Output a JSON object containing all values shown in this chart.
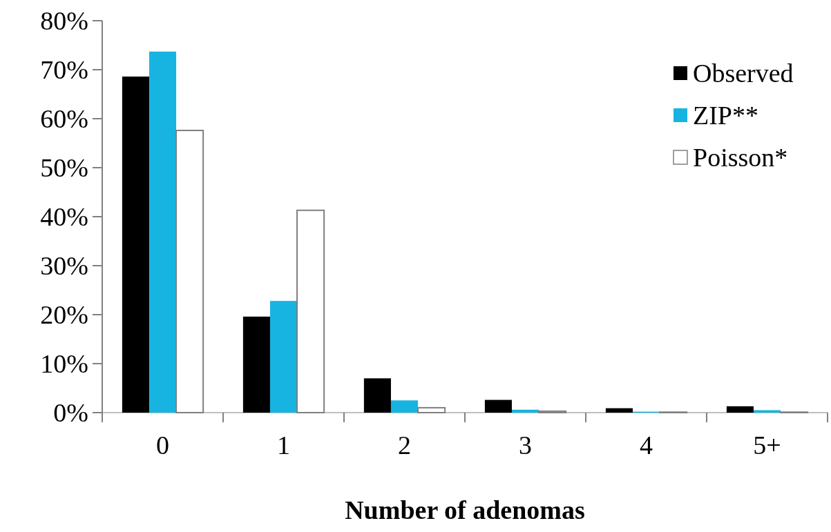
{
  "chart_data": {
    "type": "bar",
    "xlabel": "Number of adenomas",
    "categories": [
      "0",
      "1",
      "2",
      "3",
      "4",
      "5+"
    ],
    "series": [
      {
        "name": "Observed",
        "color": "#000000",
        "values": [
          68.6,
          19.6,
          7.0,
          2.6,
          0.9,
          1.3
        ]
      },
      {
        "name": "ZIP**",
        "color": "#17b4e2",
        "values": [
          73.7,
          22.8,
          2.5,
          0.6,
          0.2,
          0.5
        ]
      },
      {
        "name": "Poisson*",
        "color": "#ffffff",
        "values": [
          57.6,
          41.3,
          1.0,
          0.3,
          0.1,
          0.1
        ]
      }
    ],
    "ylim": [
      0,
      80
    ],
    "yticks": [
      {
        "value": 0,
        "label": "0%"
      },
      {
        "value": 10,
        "label": "10%"
      },
      {
        "value": 20,
        "label": "20%"
      },
      {
        "value": 30,
        "label": "30%"
      },
      {
        "value": 40,
        "label": "40%"
      },
      {
        "value": 50,
        "label": "50%"
      },
      {
        "value": 60,
        "label": "60%"
      },
      {
        "value": 70,
        "label": "70%"
      },
      {
        "value": 80,
        "label": "80%"
      }
    ],
    "legend": "top right",
    "grid": false
  }
}
